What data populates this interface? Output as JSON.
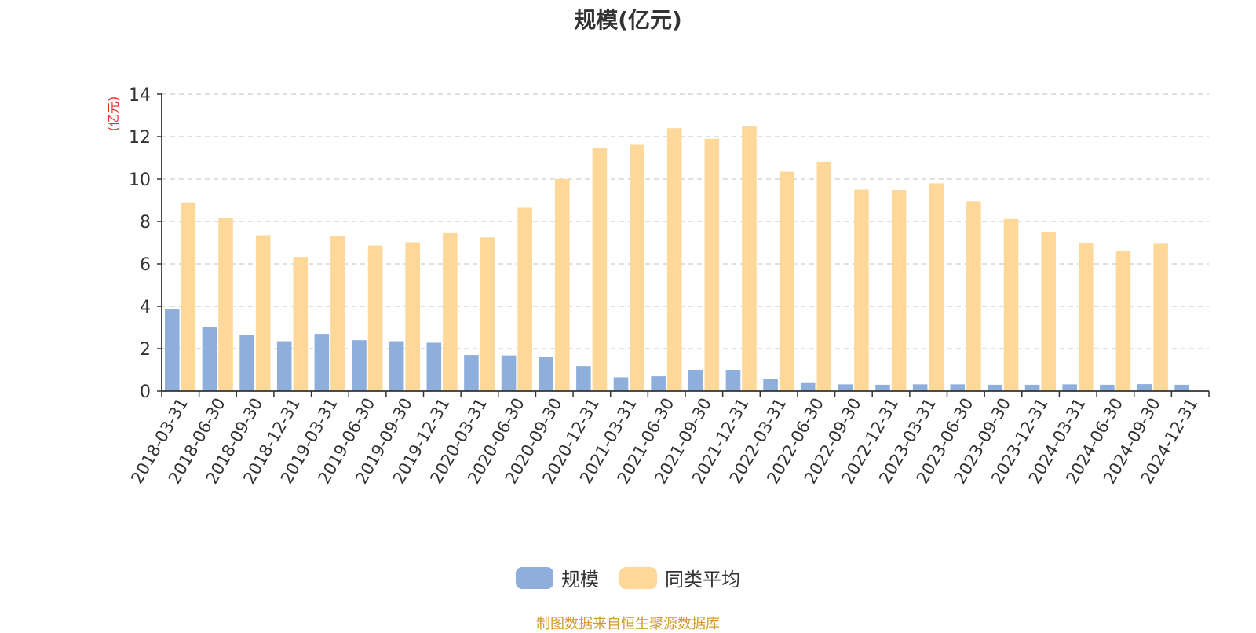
{
  "chart_data": {
    "type": "bar",
    "title": "规模(亿元)",
    "ylabel": "(亿元)",
    "xlabel": "",
    "ylim": [
      0,
      14
    ],
    "yticks": [
      0,
      2,
      4,
      6,
      8,
      10,
      12,
      14
    ],
    "grid": true,
    "legend_position": "bottom-center",
    "categories": [
      "2018-03-31",
      "2018-06-30",
      "2018-09-30",
      "2018-12-31",
      "2019-03-31",
      "2019-06-30",
      "2019-09-30",
      "2019-12-31",
      "2020-03-31",
      "2020-06-30",
      "2020-09-30",
      "2020-12-31",
      "2021-03-31",
      "2021-06-30",
      "2021-09-30",
      "2021-12-31",
      "2022-03-31",
      "2022-06-30",
      "2022-09-30",
      "2022-12-31",
      "2023-03-31",
      "2023-06-30",
      "2023-09-30",
      "2023-12-31",
      "2024-03-31",
      "2024-06-30",
      "2024-09-30",
      "2024-12-31"
    ],
    "series": [
      {
        "name": "规模",
        "color": "#8eaedc",
        "values": [
          3.85,
          3.0,
          2.65,
          2.35,
          2.7,
          2.4,
          2.35,
          2.28,
          1.7,
          1.68,
          1.62,
          1.18,
          0.65,
          0.7,
          1.0,
          1.0,
          0.58,
          0.38,
          0.32,
          0.3,
          0.32,
          0.32,
          0.3,
          0.3,
          0.32,
          0.3,
          0.33,
          0.3
        ]
      },
      {
        "name": "同类平均",
        "color": "#fed899",
        "values": [
          8.9,
          8.15,
          7.35,
          6.33,
          7.3,
          6.87,
          7.02,
          7.45,
          7.25,
          8.65,
          10.0,
          11.45,
          11.65,
          12.4,
          11.9,
          12.48,
          10.35,
          10.82,
          9.5,
          9.48,
          9.8,
          8.95,
          8.12,
          7.48,
          7.0,
          6.62,
          6.95,
          null
        ]
      }
    ]
  },
  "source_note": "制图数据来自恒生聚源数据库"
}
